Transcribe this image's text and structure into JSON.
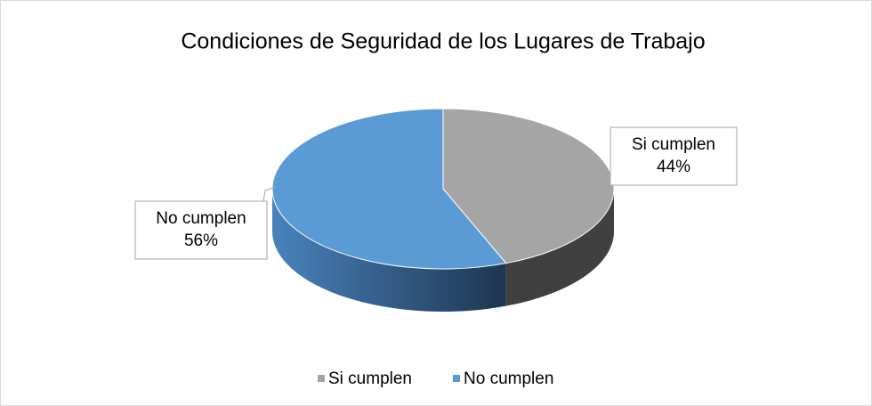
{
  "chart_data": {
    "type": "pie",
    "title": "Condiciones de Seguridad de los Lugares de Trabajo",
    "categories": [
      "Si cumplen",
      "No cumplen"
    ],
    "values": [
      44,
      56
    ],
    "value_labels": [
      "44%",
      "56%"
    ],
    "colors": [
      "#a5a5a5",
      "#5b9bd5"
    ],
    "legend": "bottom",
    "three_d": true
  }
}
